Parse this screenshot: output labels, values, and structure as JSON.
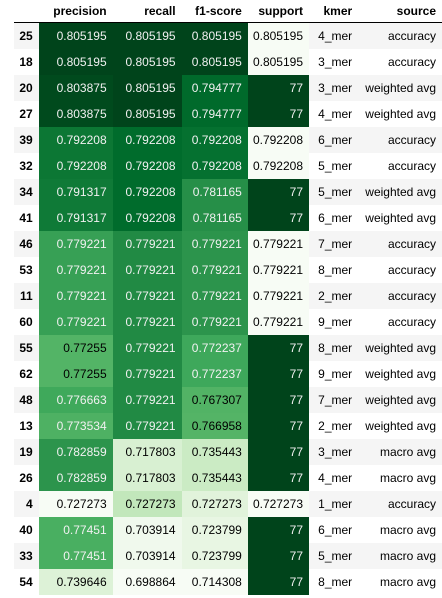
{
  "table": {
    "columns": [
      "",
      "precision",
      "recall",
      "f1-score",
      "support",
      "kmer",
      "source"
    ],
    "rows": [
      {
        "index": "25",
        "precision": "0.805195",
        "recall": "0.805195",
        "f1": "0.805195",
        "support": "0.805195",
        "kmer": "4_mer",
        "source": "accuracy"
      },
      {
        "index": "18",
        "precision": "0.805195",
        "recall": "0.805195",
        "f1": "0.805195",
        "support": "0.805195",
        "kmer": "3_mer",
        "source": "accuracy"
      },
      {
        "index": "20",
        "precision": "0.803875",
        "recall": "0.805195",
        "f1": "0.794777",
        "support": "77",
        "kmer": "3_mer",
        "source": "weighted avg"
      },
      {
        "index": "27",
        "precision": "0.803875",
        "recall": "0.805195",
        "f1": "0.794777",
        "support": "77",
        "kmer": "4_mer",
        "source": "weighted avg"
      },
      {
        "index": "39",
        "precision": "0.792208",
        "recall": "0.792208",
        "f1": "0.792208",
        "support": "0.792208",
        "kmer": "6_mer",
        "source": "accuracy"
      },
      {
        "index": "32",
        "precision": "0.792208",
        "recall": "0.792208",
        "f1": "0.792208",
        "support": "0.792208",
        "kmer": "5_mer",
        "source": "accuracy"
      },
      {
        "index": "34",
        "precision": "0.791317",
        "recall": "0.792208",
        "f1": "0.781165",
        "support": "77",
        "kmer": "5_mer",
        "source": "weighted avg"
      },
      {
        "index": "41",
        "precision": "0.791317",
        "recall": "0.792208",
        "f1": "0.781165",
        "support": "77",
        "kmer": "6_mer",
        "source": "weighted avg"
      },
      {
        "index": "46",
        "precision": "0.779221",
        "recall": "0.779221",
        "f1": "0.779221",
        "support": "0.779221",
        "kmer": "7_mer",
        "source": "accuracy"
      },
      {
        "index": "53",
        "precision": "0.779221",
        "recall": "0.779221",
        "f1": "0.779221",
        "support": "0.779221",
        "kmer": "8_mer",
        "source": "accuracy"
      },
      {
        "index": "11",
        "precision": "0.779221",
        "recall": "0.779221",
        "f1": "0.779221",
        "support": "0.779221",
        "kmer": "2_mer",
        "source": "accuracy"
      },
      {
        "index": "60",
        "precision": "0.779221",
        "recall": "0.779221",
        "f1": "0.779221",
        "support": "0.779221",
        "kmer": "9_mer",
        "source": "accuracy"
      },
      {
        "index": "55",
        "precision": "0.77255",
        "recall": "0.779221",
        "f1": "0.772237",
        "support": "77",
        "kmer": "8_mer",
        "source": "weighted avg"
      },
      {
        "index": "62",
        "precision": "0.77255",
        "recall": "0.779221",
        "f1": "0.772237",
        "support": "77",
        "kmer": "9_mer",
        "source": "weighted avg"
      },
      {
        "index": "48",
        "precision": "0.776663",
        "recall": "0.779221",
        "f1": "0.767307",
        "support": "77",
        "kmer": "7_mer",
        "source": "weighted avg"
      },
      {
        "index": "13",
        "precision": "0.773534",
        "recall": "0.779221",
        "f1": "0.766958",
        "support": "77",
        "kmer": "2_mer",
        "source": "weighted avg"
      },
      {
        "index": "19",
        "precision": "0.782859",
        "recall": "0.717803",
        "f1": "0.735443",
        "support": "77",
        "kmer": "3_mer",
        "source": "macro avg"
      },
      {
        "index": "26",
        "precision": "0.782859",
        "recall": "0.717803",
        "f1": "0.735443",
        "support": "77",
        "kmer": "4_mer",
        "source": "macro avg"
      },
      {
        "index": "4",
        "precision": "0.727273",
        "recall": "0.727273",
        "f1": "0.727273",
        "support": "0.727273",
        "kmer": "1_mer",
        "source": "accuracy"
      },
      {
        "index": "40",
        "precision": "0.77451",
        "recall": "0.703914",
        "f1": "0.723799",
        "support": "77",
        "kmer": "6_mer",
        "source": "macro avg"
      },
      {
        "index": "33",
        "precision": "0.77451",
        "recall": "0.703914",
        "f1": "0.723799",
        "support": "77",
        "kmer": "5_mer",
        "source": "macro avg"
      },
      {
        "index": "54",
        "precision": "0.739646",
        "recall": "0.698864",
        "f1": "0.714308",
        "support": "77",
        "kmer": "8_mer",
        "source": "macro avg"
      }
    ]
  },
  "colors": {
    "gradient_low": "#f7fcf5",
    "gradient_high": "#00441b",
    "stripe": "#f5f5f5"
  }
}
